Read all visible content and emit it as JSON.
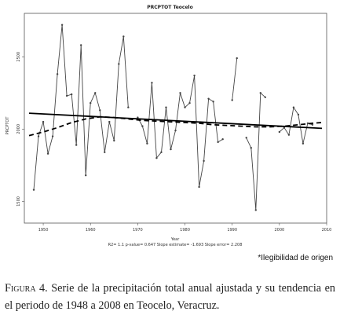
{
  "chart_data": {
    "type": "line",
    "title": "PRCPTOT  Teocelo",
    "xlabel": "Year",
    "ylabel": "PRCPTOT",
    "xlim": [
      1946,
      2010
    ],
    "ylim": [
      1350,
      2800
    ],
    "x_ticks": [
      1950,
      1960,
      1970,
      1980,
      1990,
      2000,
      2010
    ],
    "y_ticks": [
      1500,
      2000,
      2500
    ],
    "grid": false,
    "stats_text": "R2= 1.1   p-value= 0.647   Slope estimate= -1.693   Slope error= 2.208",
    "series": [
      {
        "style": "solid-thin-markers",
        "x": [
          1948,
          1949,
          1950,
          1951,
          1952,
          1953,
          1954,
          1955,
          1956,
          1957,
          1958,
          1959,
          1960,
          1961,
          1962,
          1963,
          1964,
          1965,
          1966,
          1967,
          1968,
          1969,
          1970,
          1971,
          1972,
          1973,
          1974,
          1975,
          1976,
          1977,
          1978,
          1979,
          1980,
          1981,
          1982,
          1983,
          1984,
          1985,
          1986,
          1987,
          1988,
          1989,
          1990,
          1991,
          1992,
          1993,
          1994,
          1995,
          1996,
          1997,
          1998,
          1999,
          2000,
          2001,
          2002,
          2003,
          2004,
          2005,
          2006,
          2007,
          2008
        ],
        "y": [
          1580,
          1950,
          2050,
          1830,
          1950,
          2380,
          2720,
          2230,
          2240,
          1890,
          2580,
          1680,
          2180,
          2250,
          2130,
          1840,
          2050,
          1920,
          2450,
          2640,
          2150,
          null,
          2080,
          2020,
          1900,
          2320,
          1800,
          1840,
          2150,
          1860,
          1990,
          2250,
          2150,
          2180,
          2370,
          1600,
          1780,
          2210,
          2190,
          1910,
          1930,
          null,
          2200,
          2490,
          null,
          1940,
          1870,
          1440,
          2250,
          2220,
          null,
          null,
          1980,
          2010,
          1960,
          2150,
          2100,
          1900,
          2040,
          2030,
          null
        ]
      },
      {
        "name": "",
        "style": "solid-thick",
        "x": [
          1947,
          2009
        ],
        "y": [
          2110,
          2005
        ]
      },
      {
        "name": "",
        "style": "dashed-thick",
        "x": [
          1947,
          1950,
          1953,
          1956,
          1959,
          1962,
          1965,
          1968,
          1971,
          1974,
          1977,
          1980,
          1983,
          1986,
          1989,
          1992,
          1995,
          1998,
          2001,
          2004,
          2007,
          2009
        ],
        "y": [
          1955,
          1980,
          2010,
          2045,
          2070,
          2085,
          2080,
          2070,
          2060,
          2055,
          2050,
          2045,
          2040,
          2030,
          2025,
          2020,
          2015,
          2015,
          2020,
          2030,
          2040,
          2045
        ]
      }
    ]
  },
  "note": "*Ilegibilidad de origen",
  "caption": {
    "label": "Figura 4.",
    "text": " Serie de la precipitación total anual ajustada y su tendencia en el periodo de 1948 a 2008 en Teocelo, Veracruz."
  }
}
